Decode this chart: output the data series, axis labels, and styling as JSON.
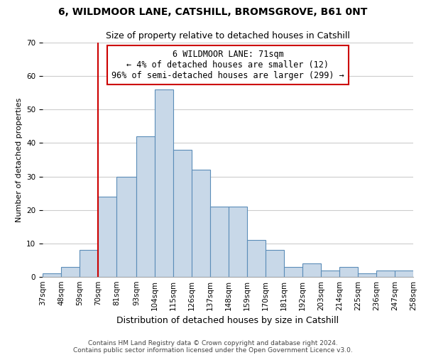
{
  "title": "6, WILDMOOR LANE, CATSHILL, BROMSGROVE, B61 0NT",
  "subtitle": "Size of property relative to detached houses in Catshill",
  "xlabel": "Distribution of detached houses by size in Catshill",
  "ylabel": "Number of detached properties",
  "bin_edges": [
    37,
    48,
    59,
    70,
    81,
    93,
    104,
    115,
    126,
    137,
    148,
    159,
    170,
    181,
    192,
    203,
    214,
    225,
    236,
    247,
    258
  ],
  "counts": [
    1,
    3,
    8,
    24,
    30,
    42,
    56,
    38,
    32,
    21,
    21,
    11,
    8,
    3,
    4,
    2,
    3,
    1,
    2,
    2
  ],
  "bar_color": "#c8d8e8",
  "bar_edgecolor": "#5b8db8",
  "vline_x": 70,
  "vline_color": "#cc0000",
  "ylim": [
    0,
    70
  ],
  "yticks": [
    0,
    10,
    20,
    30,
    40,
    50,
    60,
    70
  ],
  "tick_labels": [
    "37sqm",
    "48sqm",
    "59sqm",
    "70sqm",
    "81sqm",
    "93sqm",
    "104sqm",
    "115sqm",
    "126sqm",
    "137sqm",
    "148sqm",
    "159sqm",
    "170sqm",
    "181sqm",
    "192sqm",
    "203sqm",
    "214sqm",
    "225sqm",
    "236sqm",
    "247sqm",
    "258sqm"
  ],
  "annotation_title": "6 WILDMOOR LANE: 71sqm",
  "annotation_line1": "← 4% of detached houses are smaller (12)",
  "annotation_line2": "96% of semi-detached houses are larger (299) →",
  "annotation_box_edgecolor": "#cc0000",
  "footer1": "Contains HM Land Registry data © Crown copyright and database right 2024.",
  "footer2": "Contains public sector information licensed under the Open Government Licence v3.0.",
  "background_color": "#ffffff",
  "grid_color": "#cccccc",
  "title_fontsize": 10,
  "subtitle_fontsize": 9,
  "ylabel_fontsize": 8,
  "xlabel_fontsize": 9,
  "tick_fontsize": 7.5,
  "annotation_fontsize": 8.5,
  "footer_fontsize": 6.5
}
